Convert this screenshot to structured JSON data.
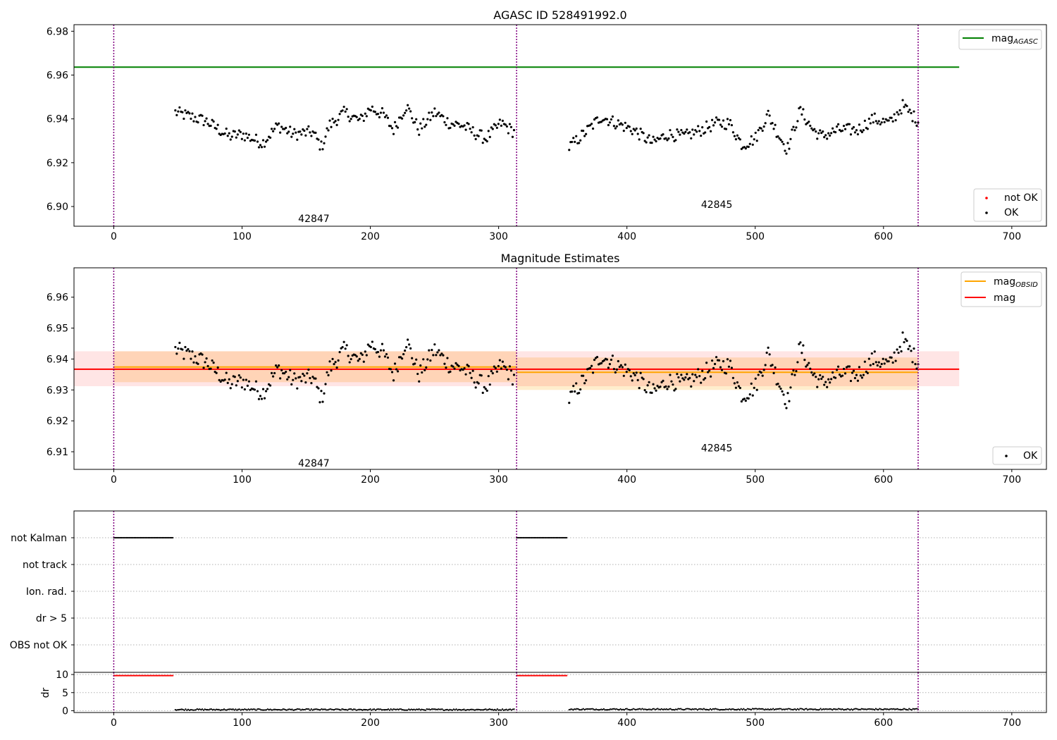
{
  "chart_data": [
    {
      "type": "scatter",
      "title": "AGASC ID 528491992.0",
      "xlim": [
        -31,
        727
      ],
      "ylim": [
        6.891,
        6.983
      ],
      "xticks": [
        "0",
        "100",
        "200",
        "300",
        "400",
        "500",
        "600",
        "700"
      ],
      "yticks": [
        "6.90",
        "6.92",
        "6.94",
        "6.96",
        "6.98"
      ],
      "obsid_boundaries": [
        0,
        314,
        627
      ],
      "obsid_labels": [
        {
          "text": "42847",
          "x": 156,
          "y": 6.8945
        },
        {
          "text": "42845",
          "x": 470,
          "y": 6.901
        }
      ],
      "lines": [
        {
          "name": "mag_AGASC",
          "legend_main": "mag",
          "legend_sub": "AGASC",
          "y": 6.9636,
          "x": [
            -31,
            659
          ],
          "color": "#008000"
        }
      ],
      "scatter_legend": [
        {
          "name": "not OK",
          "color": "#ff0000"
        },
        {
          "name": "OK",
          "color": "#000000"
        }
      ],
      "series": [
        {
          "name": "OK",
          "x_range": [
            48,
            312
          ],
          "count": 240,
          "anchors": [
            [
              48,
              6.943
            ],
            [
              60,
              6.941
            ],
            [
              72,
              6.939
            ],
            [
              90,
              6.932
            ],
            [
              100,
              6.933
            ],
            [
              116,
              6.929
            ],
            [
              128,
              6.937
            ],
            [
              140,
              6.933
            ],
            [
              155,
              6.934
            ],
            [
              162,
              6.927
            ],
            [
              168,
              6.937
            ],
            [
              180,
              6.943
            ],
            [
              192,
              6.939
            ],
            [
              200,
              6.945
            ],
            [
              210,
              6.942
            ],
            [
              218,
              6.935
            ],
            [
              228,
              6.946
            ],
            [
              238,
              6.935
            ],
            [
              250,
              6.943
            ],
            [
              262,
              6.938
            ],
            [
              272,
              6.937
            ],
            [
              280,
              6.934
            ],
            [
              290,
              6.931
            ],
            [
              302,
              6.938
            ],
            [
              312,
              6.934
            ]
          ],
          "noise": 0.0028
        },
        {
          "name": "OK",
          "x_range": [
            355,
            627
          ],
          "count": 250,
          "anchors": [
            [
              355,
              6.927
            ],
            [
              368,
              6.934
            ],
            [
              380,
              6.941
            ],
            [
              392,
              6.938
            ],
            [
              405,
              6.935
            ],
            [
              420,
              6.929
            ],
            [
              432,
              6.933
            ],
            [
              445,
              6.932
            ],
            [
              458,
              6.935
            ],
            [
              470,
              6.938
            ],
            [
              480,
              6.938
            ],
            [
              490,
              6.928
            ],
            [
              500,
              6.931
            ],
            [
              510,
              6.942
            ],
            [
              518,
              6.933
            ],
            [
              525,
              6.926
            ],
            [
              535,
              6.944
            ],
            [
              545,
              6.935
            ],
            [
              552,
              6.932
            ],
            [
              565,
              6.935
            ],
            [
              580,
              6.935
            ],
            [
              592,
              6.94
            ],
            [
              605,
              6.938
            ],
            [
              615,
              6.946
            ],
            [
              627,
              6.939
            ]
          ],
          "noise": 0.0028
        }
      ]
    },
    {
      "type": "scatter",
      "title": "Magnitude Estimates",
      "xlim": [
        -31,
        727
      ],
      "ylim": [
        6.9043,
        6.9695
      ],
      "xticks": [
        "0",
        "100",
        "200",
        "300",
        "400",
        "500",
        "600",
        "700"
      ],
      "yticks": [
        "6.91",
        "6.92",
        "6.93",
        "6.94",
        "6.95",
        "6.96"
      ],
      "obsid_boundaries": [
        0,
        314,
        627
      ],
      "obsid_labels": [
        {
          "text": "42847",
          "x": 156,
          "y": 6.9064
        },
        {
          "text": "42845",
          "x": 470,
          "y": 6.9112
        }
      ],
      "bands": [
        {
          "name": "mag_OBSID band 42847",
          "x": [
            0,
            314
          ],
          "y": [
            6.9325,
            6.9425
          ],
          "color": "#ffa500",
          "opacity": 0.2
        },
        {
          "name": "mag_OBSID band 42845",
          "x": [
            314,
            627
          ],
          "y": [
            6.93,
            6.9405
          ],
          "color": "#ffa500",
          "opacity": 0.2
        },
        {
          "name": "mag band",
          "x": [
            -31,
            659
          ],
          "y": [
            6.9312,
            6.9425
          ],
          "color": "#ff0000",
          "opacity": 0.1
        }
      ],
      "lines": [
        {
          "name": "mag_OBSID 42847",
          "y": 6.9374,
          "x": [
            0,
            314
          ],
          "color": "#ffa500"
        },
        {
          "name": "mag_OBSID 42845",
          "y": 6.9357,
          "x": [
            314,
            627
          ],
          "color": "#ffa500"
        },
        {
          "name": "mag",
          "y": 6.9367,
          "x": [
            -31,
            659
          ],
          "color": "#ff0000"
        }
      ],
      "line_legend": [
        {
          "name": "mag_OBSID",
          "legend_main": "mag",
          "legend_sub": "OBSID",
          "color": "#ffa500"
        },
        {
          "name": "mag",
          "legend_main": "mag",
          "legend_sub": "",
          "color": "#ff0000"
        }
      ],
      "scatter_legend": [
        {
          "name": "OK",
          "color": "#000000"
        }
      ]
    },
    {
      "type": "scatter",
      "title": "",
      "xlim": [
        -31,
        727
      ],
      "categories": [
        "not Kalman",
        "not track",
        "Ion. rad.",
        "dr > 5",
        "OBS not OK"
      ],
      "obsid_boundaries": [
        0,
        314,
        627
      ],
      "flag_series": [
        {
          "category": "not Kalman",
          "x_range": [
            0,
            46
          ],
          "color": "#000000"
        },
        {
          "category": "not Kalman",
          "x_range": [
            314,
            353
          ],
          "color": "#000000"
        }
      ]
    },
    {
      "type": "scatter",
      "title": "",
      "xlim": [
        -31,
        727
      ],
      "ylim": [
        -0.5,
        10.6
      ],
      "ylabel": "dr",
      "xticks": [
        "0",
        "100",
        "200",
        "300",
        "400",
        "500",
        "600",
        "700"
      ],
      "yticks": [
        "0",
        "5",
        "10"
      ],
      "series": [
        {
          "name": "dr not OK",
          "x_range": [
            0,
            46
          ],
          "value": 9.7,
          "color": "#ff0000"
        },
        {
          "name": "dr not OK",
          "x_range": [
            314,
            353
          ],
          "value": 9.7,
          "color": "#ff0000"
        },
        {
          "name": "dr",
          "x_range": [
            48,
            312
          ],
          "value": 0.3,
          "color": "#000000"
        },
        {
          "name": "dr",
          "x_range": [
            355,
            627
          ],
          "value": 0.4,
          "color": "#000000"
        }
      ]
    }
  ]
}
